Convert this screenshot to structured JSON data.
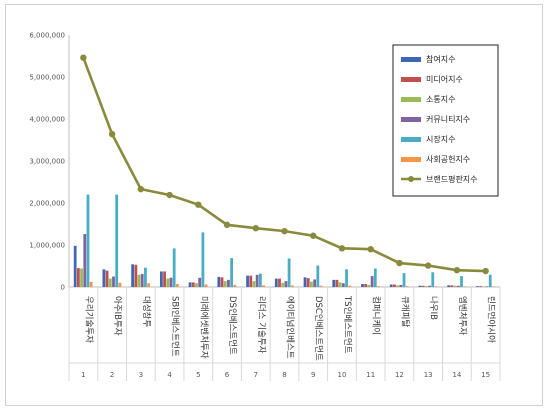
{
  "chart_data": {
    "type": "bar",
    "ylim": [
      0,
      6000000
    ],
    "yticks": [
      "0",
      "1,000,000",
      "2,000,000",
      "3,000,000",
      "4,000,000",
      "5,000,000",
      "6,000,000"
    ],
    "ytick_values": [
      0,
      1000000,
      2000000,
      3000000,
      4000000,
      5000000,
      6000000
    ],
    "categories": [
      "우리기술투자",
      "아주IB투자",
      "대성창투",
      "SBI인베스트먼트",
      "미래에셋벤처투자",
      "DS인베스트먼트",
      "리더스 기술투자",
      "에이티넘인베스트",
      "DSC인베스트먼트",
      "TS인베스트먼트",
      "컴퍼니케이",
      "큐캐피탈",
      "나우IB",
      "엠벤처투자",
      "린드먼아시아"
    ],
    "ranks": [
      "1",
      "2",
      "3",
      "4",
      "5",
      "6",
      "7",
      "8",
      "9",
      "10",
      "11",
      "12",
      "13",
      "14",
      "15"
    ],
    "series": [
      {
        "name": "참여지수",
        "color": "#3f67b5",
        "values": [
          980000,
          420000,
          540000,
          370000,
          110000,
          240000,
          270000,
          200000,
          230000,
          170000,
          70000,
          60000,
          30000,
          40000,
          20000
        ]
      },
      {
        "name": "미디어지수",
        "color": "#c0504d",
        "values": [
          450000,
          390000,
          530000,
          370000,
          110000,
          230000,
          270000,
          200000,
          210000,
          170000,
          70000,
          60000,
          30000,
          40000,
          20000
        ]
      },
      {
        "name": "소통지수",
        "color": "#9bbb59",
        "values": [
          440000,
          200000,
          290000,
          200000,
          90000,
          140000,
          140000,
          100000,
          130000,
          110000,
          50000,
          40000,
          20000,
          30000,
          15000
        ]
      },
      {
        "name": "커뮤니티지수",
        "color": "#8064a2",
        "values": [
          1260000,
          250000,
          310000,
          220000,
          220000,
          170000,
          290000,
          140000,
          180000,
          90000,
          260000,
          50000,
          30000,
          30000,
          15000
        ]
      },
      {
        "name": "시장지수",
        "color": "#4bacc6",
        "values": [
          2200000,
          2200000,
          460000,
          920000,
          1300000,
          690000,
          320000,
          680000,
          510000,
          420000,
          440000,
          330000,
          350000,
          260000,
          290000
        ]
      },
      {
        "name": "사회공헌지수",
        "color": "#f79646",
        "values": [
          120000,
          100000,
          90000,
          70000,
          60000,
          50000,
          40000,
          40000,
          30000,
          30000,
          20000,
          20000,
          15000,
          15000,
          10000
        ]
      }
    ],
    "line": {
      "name": "브랜드평판지수",
      "color": "#8a8a3c",
      "values": [
        5460000,
        3640000,
        2330000,
        2190000,
        1960000,
        1480000,
        1400000,
        1330000,
        1220000,
        920000,
        900000,
        570000,
        510000,
        400000,
        380000
      ]
    }
  }
}
